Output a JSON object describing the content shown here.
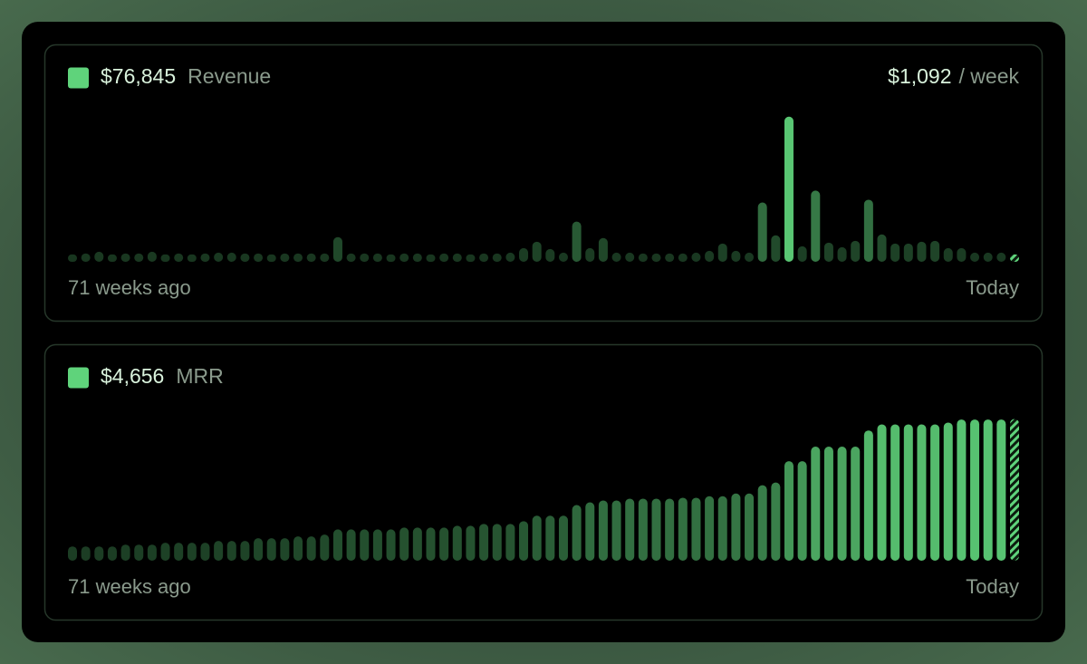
{
  "chart_data": [
    {
      "type": "bar",
      "total": "$76,845",
      "label": "Revenue",
      "rate": "$1,092",
      "rate_unit": "/ week",
      "start_label": "71 weeks ago",
      "end_label": "Today",
      "color": "#5fd37b",
      "ylim": [
        0,
        10000
      ],
      "values": [
        480,
        540,
        660,
        480,
        540,
        540,
        660,
        480,
        540,
        480,
        540,
        600,
        600,
        540,
        540,
        480,
        540,
        540,
        540,
        540,
        1620,
        540,
        540,
        540,
        480,
        540,
        540,
        480,
        540,
        540,
        480,
        540,
        540,
        600,
        900,
        1320,
        840,
        600,
        2640,
        900,
        1560,
        600,
        600,
        540,
        540,
        540,
        540,
        600,
        720,
        1200,
        720,
        600,
        3900,
        1740,
        9540,
        1020,
        4680,
        1260,
        960,
        1380,
        4080,
        1800,
        1200,
        1200,
        1320,
        1380,
        900,
        900,
        600,
        600,
        600,
        480
      ]
    },
    {
      "type": "bar",
      "total": "$4,656",
      "label": "MRR",
      "start_label": "71 weeks ago",
      "end_label": "Today",
      "color": "#5fd37b",
      "ylim": [
        0,
        5000
      ],
      "values": [
        470,
        470,
        470,
        470,
        530,
        530,
        530,
        590,
        590,
        590,
        590,
        650,
        650,
        650,
        740,
        740,
        740,
        800,
        800,
        860,
        1030,
        1030,
        1030,
        1030,
        1030,
        1090,
        1090,
        1090,
        1090,
        1150,
        1150,
        1210,
        1210,
        1210,
        1300,
        1480,
        1480,
        1480,
        1830,
        1920,
        1980,
        1980,
        2040,
        2040,
        2040,
        2040,
        2070,
        2070,
        2120,
        2120,
        2210,
        2210,
        2480,
        2570,
        3270,
        3270,
        3750,
        3750,
        3750,
        3750,
        4280,
        4480,
        4480,
        4480,
        4480,
        4480,
        4540,
        4640,
        4640,
        4640,
        4640,
        4656
      ]
    }
  ]
}
